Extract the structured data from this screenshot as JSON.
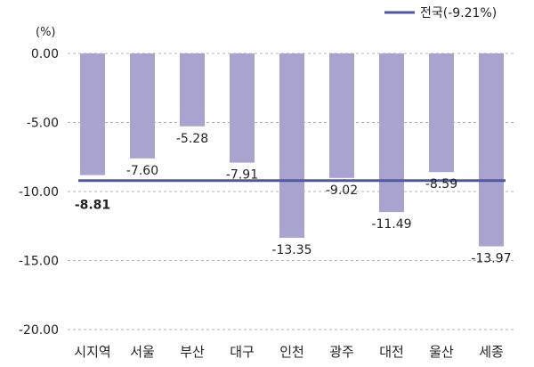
{
  "chart_data": {
    "type": "bar",
    "unit_label": "(%)",
    "categories": [
      "시지역",
      "서울",
      "부산",
      "대구",
      "인천",
      "광주",
      "대전",
      "울산",
      "세종"
    ],
    "values": [
      -8.81,
      -7.6,
      -5.28,
      -7.91,
      -13.35,
      -9.02,
      -11.49,
      -8.59,
      -13.97
    ],
    "data_labels": [
      "-8.81",
      "-7.60",
      "-5.28",
      "-7.91",
      "-13.35",
      "-9.02",
      "-11.49",
      "-8.59",
      "-13.97"
    ],
    "highlight_label_index": 0,
    "reference_line": {
      "label": "전국(-9.21%)",
      "value": -9.21
    },
    "y_ticks": [
      0,
      -5,
      -10,
      -15,
      -20
    ],
    "y_tick_labels": [
      "0.00",
      "-5.00",
      "-10.00",
      "-15.00",
      "-20.00"
    ],
    "ylim": [
      -20,
      0
    ],
    "grid": "horizontal dashed",
    "legend_position": "top-right",
    "colors": {
      "bar": "#a9a3d0",
      "line": "#5058a4",
      "highlight_label": "#5a58a2",
      "grid": "#b0b0b0"
    }
  }
}
